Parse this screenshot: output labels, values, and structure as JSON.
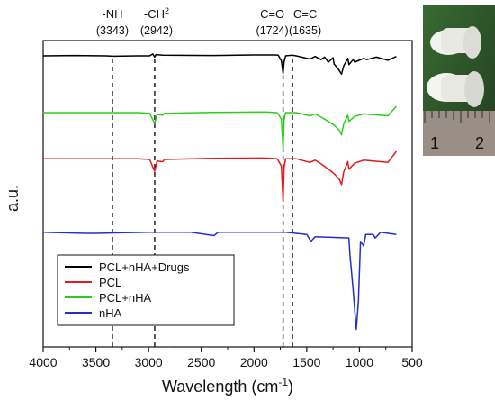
{
  "chart_data": {
    "type": "line",
    "xlabel": "Wavelength (cm",
    "xlabel_sup": "-1",
    "xlabel_close": ")",
    "ylabel": "a.u.",
    "xlim": [
      4000,
      500
    ],
    "x_ticks": [
      "4000",
      "3500",
      "3000",
      "2500",
      "2000",
      "1500",
      "1000",
      "500"
    ],
    "x_tick_values": [
      4000,
      3500,
      3000,
      2500,
      2000,
      1500,
      1000,
      500
    ],
    "grid": false,
    "legend_position": "bottom-left",
    "annotations": [
      {
        "name": "-NH",
        "value_text": "(3343)",
        "x": 3343
      },
      {
        "name": "-CH",
        "sub": "2",
        "value_text": "(2942)",
        "x": 2942
      },
      {
        "name": "C=O",
        "value_text": "(1724)",
        "x": 1724
      },
      {
        "name": "C=C",
        "value_text": "(1635)",
        "x": 1635
      }
    ],
    "series": [
      {
        "name": "PCL+nHA+Drugs",
        "color": "#000000",
        "baseline": 0.91,
        "points": [
          [
            4000,
            0.9
          ],
          [
            3700,
            0.905
          ],
          [
            3400,
            0.9
          ],
          [
            3343,
            0.895
          ],
          [
            3100,
            0.9
          ],
          [
            2990,
            0.9
          ],
          [
            2960,
            0.93
          ],
          [
            2942,
            0.88
          ],
          [
            2930,
            0.92
          ],
          [
            2865,
            0.91
          ],
          [
            2400,
            0.905
          ],
          [
            2000,
            0.915
          ],
          [
            1800,
            0.915
          ],
          [
            1770,
            0.91
          ],
          [
            1740,
            0.82
          ],
          [
            1724,
            0.62
          ],
          [
            1715,
            0.8
          ],
          [
            1700,
            0.9
          ],
          [
            1640,
            0.91
          ],
          [
            1600,
            0.9
          ],
          [
            1470,
            0.85
          ],
          [
            1420,
            0.89
          ],
          [
            1365,
            0.84
          ],
          [
            1330,
            0.88
          ],
          [
            1295,
            0.8
          ],
          [
            1250,
            0.87
          ],
          [
            1240,
            0.77
          ],
          [
            1200,
            0.69
          ],
          [
            1170,
            0.61
          ],
          [
            1150,
            0.74
          ],
          [
            1110,
            0.86
          ],
          [
            1100,
            0.76
          ],
          [
            1060,
            0.84
          ],
          [
            1045,
            0.8
          ],
          [
            960,
            0.86
          ],
          [
            930,
            0.84
          ],
          [
            840,
            0.88
          ],
          [
            730,
            0.83
          ],
          [
            650,
            0.89
          ]
        ]
      },
      {
        "name": "PCL",
        "color": "#e31a1c",
        "baseline": 0.91,
        "points": [
          [
            4000,
            0.9
          ],
          [
            3600,
            0.9
          ],
          [
            3100,
            0.9
          ],
          [
            2990,
            0.89
          ],
          [
            2942,
            0.73
          ],
          [
            2920,
            0.87
          ],
          [
            2865,
            0.86
          ],
          [
            2850,
            0.89
          ],
          [
            2400,
            0.905
          ],
          [
            1900,
            0.91
          ],
          [
            1780,
            0.9
          ],
          [
            1740,
            0.8
          ],
          [
            1724,
            0.32
          ],
          [
            1715,
            0.78
          ],
          [
            1700,
            0.9
          ],
          [
            1600,
            0.9
          ],
          [
            1470,
            0.85
          ],
          [
            1420,
            0.88
          ],
          [
            1365,
            0.83
          ],
          [
            1295,
            0.76
          ],
          [
            1240,
            0.7
          ],
          [
            1190,
            0.62
          ],
          [
            1170,
            0.55
          ],
          [
            1150,
            0.72
          ],
          [
            1110,
            0.86
          ],
          [
            1100,
            0.76
          ],
          [
            1045,
            0.84
          ],
          [
            960,
            0.88
          ],
          [
            730,
            0.85
          ],
          [
            650,
            1.0
          ]
        ]
      },
      {
        "name": "PCL+nHA",
        "color": "#2ecc1a",
        "baseline": 0.91,
        "points": [
          [
            4000,
            0.9
          ],
          [
            3600,
            0.9
          ],
          [
            3100,
            0.9
          ],
          [
            2990,
            0.89
          ],
          [
            2942,
            0.73
          ],
          [
            2920,
            0.87
          ],
          [
            2865,
            0.86
          ],
          [
            2850,
            0.89
          ],
          [
            2400,
            0.905
          ],
          [
            1900,
            0.91
          ],
          [
            1780,
            0.9
          ],
          [
            1740,
            0.8
          ],
          [
            1724,
            0.32
          ],
          [
            1715,
            0.78
          ],
          [
            1700,
            0.9
          ],
          [
            1600,
            0.9
          ],
          [
            1470,
            0.85
          ],
          [
            1420,
            0.88
          ],
          [
            1365,
            0.83
          ],
          [
            1295,
            0.76
          ],
          [
            1240,
            0.7
          ],
          [
            1190,
            0.62
          ],
          [
            1170,
            0.55
          ],
          [
            1150,
            0.72
          ],
          [
            1110,
            0.86
          ],
          [
            1100,
            0.76
          ],
          [
            1045,
            0.84
          ],
          [
            960,
            0.88
          ],
          [
            730,
            0.85
          ],
          [
            650,
            1.0
          ]
        ]
      },
      {
        "name": "nHA",
        "color": "#1f2fd0",
        "baseline": 0.91,
        "points": [
          [
            4000,
            0.9
          ],
          [
            3600,
            0.89
          ],
          [
            3500,
            0.89
          ],
          [
            3000,
            0.9
          ],
          [
            2600,
            0.9
          ],
          [
            2380,
            0.87
          ],
          [
            2340,
            0.9
          ],
          [
            2000,
            0.9
          ],
          [
            1700,
            0.9
          ],
          [
            1500,
            0.88
          ],
          [
            1460,
            0.82
          ],
          [
            1420,
            0.86
          ],
          [
            1100,
            0.85
          ],
          [
            1090,
            0.7
          ],
          [
            1060,
            0.4
          ],
          [
            1030,
            0.05
          ],
          [
            1010,
            0.3
          ],
          [
            990,
            0.82
          ],
          [
            960,
            0.78
          ],
          [
            940,
            0.88
          ],
          [
            870,
            0.88
          ],
          [
            850,
            0.85
          ],
          [
            800,
            0.9
          ],
          [
            650,
            0.88
          ]
        ]
      }
    ]
  },
  "inset_photo": {
    "scale_labels": [
      "1",
      "2"
    ]
  }
}
